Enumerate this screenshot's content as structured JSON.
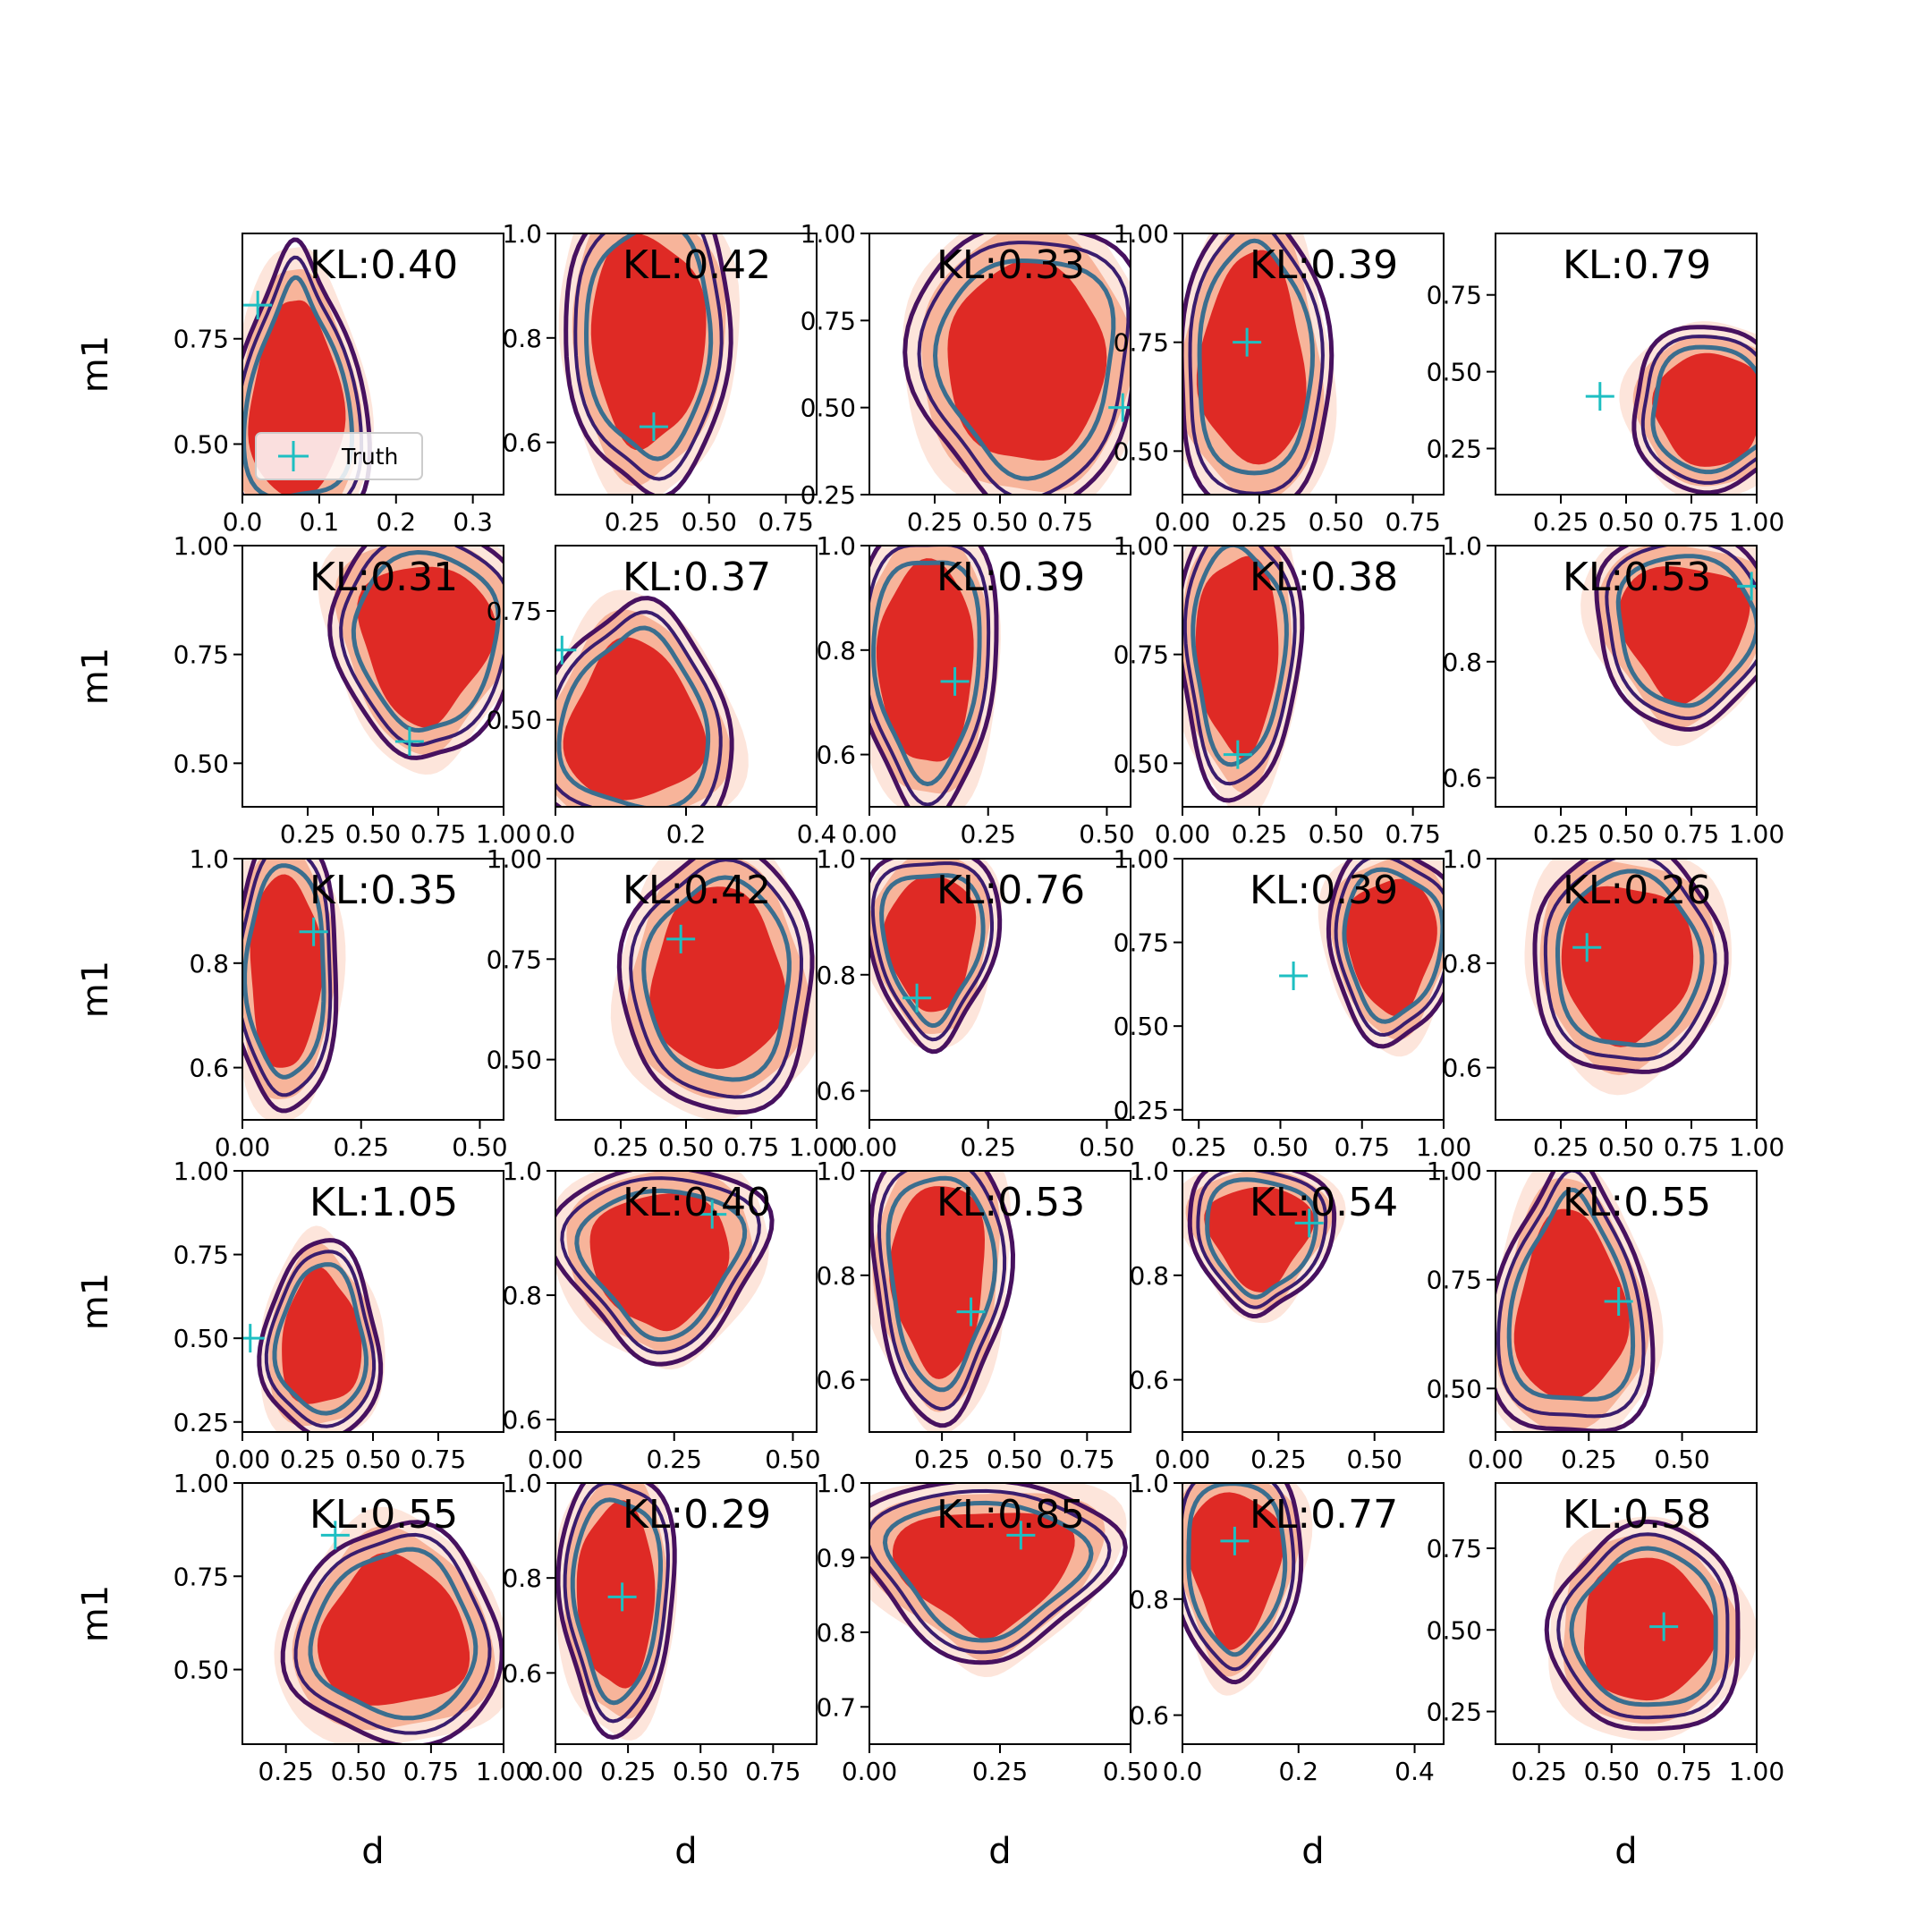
{
  "chart_data": {
    "type": "contour-grid",
    "rows": 5,
    "cols": 5,
    "xlabel": "d",
    "ylabel": "m1",
    "legend": {
      "label": "Truth",
      "placement": "lower-left"
    },
    "colors": {
      "fill_outer": "#fde5db",
      "fill_mid": "#f7b49a",
      "fill_inner": "#df2a25",
      "contour_outer": "#47115f",
      "contour_mid": "#3a1d6e",
      "contour_inner": "#3b6e8e",
      "truth_marker": "#1ebfc2"
    },
    "panels": [
      {
        "kl": "KL:0.40",
        "xlim": [
          0,
          0.34
        ],
        "ylim": [
          0.38,
          1.0
        ],
        "xticks": [
          0,
          0.1,
          0.2,
          0.3
        ],
        "xtick_labels": [
          "0.0",
          "0.1",
          "0.2",
          "0.3"
        ],
        "yticks": [
          0.5,
          0.75
        ],
        "ytick_labels": [
          "0.50",
          "0.75"
        ],
        "truth": [
          0.02,
          0.83
        ],
        "cx": 0.07,
        "cy": 0.62,
        "rx": 0.07,
        "ry": 0.28,
        "skew": -0.45
      },
      {
        "kl": "KL:0.42",
        "xlim": [
          0,
          0.85
        ],
        "ylim": [
          0.5,
          1.0
        ],
        "xticks": [
          0.25,
          0.5,
          0.75
        ],
        "xtick_labels": [
          "0.25",
          "0.50",
          "0.75"
        ],
        "yticks": [
          0.6,
          0.8,
          1.0
        ],
        "ytick_labels": [
          "0.6",
          "0.8",
          "1.0"
        ],
        "truth": [
          0.32,
          0.63
        ],
        "cx": 0.3,
        "cy": 0.79,
        "rx": 0.22,
        "ry": 0.24,
        "skew": 0.2
      },
      {
        "kl": "KL:0.33",
        "xlim": [
          0,
          1.0
        ],
        "ylim": [
          0.25,
          1.0
        ],
        "xticks": [
          0.25,
          0.5,
          0.75
        ],
        "xtick_labels": [
          "0.25",
          "0.50",
          "0.75"
        ],
        "yticks": [
          0.25,
          0.5,
          0.75,
          1.0
        ],
        "ytick_labels": [
          "0.25",
          "0.50",
          "0.75",
          "1.00"
        ],
        "truth": [
          0.97,
          0.5
        ],
        "cx": 0.6,
        "cy": 0.62,
        "rx": 0.36,
        "ry": 0.34,
        "skew": 0.15
      },
      {
        "kl": "KL:0.39",
        "xlim": [
          0,
          0.85
        ],
        "ylim": [
          0.4,
          1.0
        ],
        "xticks": [
          0,
          0.25,
          0.5,
          0.75
        ],
        "xtick_labels": [
          "0.00",
          "0.25",
          "0.50",
          "0.75"
        ],
        "yticks": [
          0.5,
          0.75,
          1.0
        ],
        "ytick_labels": [
          "0.50",
          "0.75",
          "1.00"
        ],
        "truth": [
          0.21,
          0.75
        ],
        "cx": 0.23,
        "cy": 0.72,
        "rx": 0.2,
        "ry": 0.29,
        "skew": -0.25
      },
      {
        "kl": "KL:0.79",
        "xlim": [
          0,
          1.0
        ],
        "ylim": [
          0.1,
          0.95
        ],
        "xticks": [
          0.25,
          0.5,
          0.75,
          1.0
        ],
        "xtick_labels": [
          "0.25",
          "0.50",
          "0.75",
          "1.00"
        ],
        "yticks": [
          0.25,
          0.5,
          0.75
        ],
        "ytick_labels": [
          "0.25",
          "0.50",
          "0.75"
        ],
        "truth": [
          0.4,
          0.42
        ],
        "cx": 0.82,
        "cy": 0.38,
        "rx": 0.25,
        "ry": 0.22,
        "skew": 0
      },
      {
        "kl": "KL:0.31",
        "xlim": [
          0,
          1.0
        ],
        "ylim": [
          0.4,
          1.0
        ],
        "xticks": [
          0.25,
          0.5,
          0.75,
          1.0
        ],
        "xtick_labels": [
          "0.25",
          "0.50",
          "0.75",
          "1.00"
        ],
        "yticks": [
          0.5,
          0.75,
          1.0
        ],
        "ytick_labels": [
          "0.50",
          "0.75",
          "1.00"
        ],
        "truth": [
          0.64,
          0.55
        ],
        "cx": 0.7,
        "cy": 0.77,
        "rx": 0.29,
        "ry": 0.22,
        "skew": 0.35
      },
      {
        "kl": "KL:0.37",
        "xlim": [
          0,
          0.4
        ],
        "ylim": [
          0.3,
          0.9
        ],
        "xticks": [
          0,
          0.2,
          0.4
        ],
        "xtick_labels": [
          "0.0",
          "0.2",
          "0.4"
        ],
        "yticks": [
          0.5,
          0.75
        ],
        "ytick_labels": [
          "0.50",
          "0.75"
        ],
        "truth": [
          0.01,
          0.66
        ],
        "cx": 0.12,
        "cy": 0.5,
        "rx": 0.12,
        "ry": 0.22,
        "skew": -0.3
      },
      {
        "kl": "KL:0.39",
        "xlim": [
          0,
          0.55
        ],
        "ylim": [
          0.5,
          1.0
        ],
        "xticks": [
          0,
          0.25,
          0.5
        ],
        "xtick_labels": [
          "0.00",
          "0.25",
          "0.50"
        ],
        "yticks": [
          0.6,
          0.8,
          1.0
        ],
        "ytick_labels": [
          "0.6",
          "0.8",
          "1.0"
        ],
        "truth": [
          0.18,
          0.74
        ],
        "cx": 0.12,
        "cy": 0.77,
        "rx": 0.12,
        "ry": 0.23,
        "skew": 0.15
      },
      {
        "kl": "KL:0.38",
        "xlim": [
          0,
          0.85
        ],
        "ylim": [
          0.4,
          1.0
        ],
        "xticks": [
          0,
          0.25,
          0.5,
          0.75
        ],
        "xtick_labels": [
          "0.00",
          "0.25",
          "0.50",
          "0.75"
        ],
        "yticks": [
          0.5,
          0.75,
          1.0
        ],
        "ytick_labels": [
          "0.50",
          "0.75",
          "1.00"
        ],
        "truth": [
          0.18,
          0.52
        ],
        "cx": 0.18,
        "cy": 0.75,
        "rx": 0.16,
        "ry": 0.27,
        "skew": 0.1
      },
      {
        "kl": "KL:0.53",
        "xlim": [
          0,
          1.0
        ],
        "ylim": [
          0.55,
          1.0
        ],
        "xticks": [
          0.25,
          0.5,
          0.75,
          1.0
        ],
        "xtick_labels": [
          "0.25",
          "0.50",
          "0.75",
          "1.00"
        ],
        "yticks": [
          0.6,
          0.8,
          1.0
        ],
        "ytick_labels": [
          "0.6",
          "0.8",
          "1.0"
        ],
        "truth": [
          0.98,
          0.93
        ],
        "cx": 0.72,
        "cy": 0.85,
        "rx": 0.28,
        "ry": 0.14,
        "skew": 0.3
      },
      {
        "kl": "KL:0.35",
        "xlim": [
          0,
          0.55
        ],
        "ylim": [
          0.5,
          1.0
        ],
        "xticks": [
          0,
          0.25,
          0.5
        ],
        "xtick_labels": [
          "0.00",
          "0.25",
          "0.50"
        ],
        "yticks": [
          0.6,
          0.8,
          1.0
        ],
        "ytick_labels": [
          "0.6",
          "0.8",
          "1.0"
        ],
        "truth": [
          0.15,
          0.86
        ],
        "cx": 0.09,
        "cy": 0.78,
        "rx": 0.09,
        "ry": 0.22,
        "skew": 0.1
      },
      {
        "kl": "KL:0.42",
        "xlim": [
          0,
          1.0
        ],
        "ylim": [
          0.35,
          1.0
        ],
        "xticks": [
          0.25,
          0.5,
          0.75,
          1.0
        ],
        "xtick_labels": [
          "0.25",
          "0.50",
          "0.75",
          "1.00"
        ],
        "yticks": [
          0.5,
          0.75,
          1.0
        ],
        "ytick_labels": [
          "0.50",
          "0.75",
          "1.00"
        ],
        "truth": [
          0.48,
          0.8
        ],
        "cx": 0.62,
        "cy": 0.7,
        "rx": 0.3,
        "ry": 0.27,
        "skew": -0.05
      },
      {
        "kl": "KL:0.76",
        "xlim": [
          0,
          0.55
        ],
        "ylim": [
          0.55,
          1.0
        ],
        "xticks": [
          0,
          0.25,
          0.5
        ],
        "xtick_labels": [
          "0.00",
          "0.25",
          "0.50"
        ],
        "yticks": [
          0.6,
          0.8,
          1.0
        ],
        "ytick_labels": [
          "0.6",
          "0.8",
          "1.0"
        ],
        "truth": [
          0.1,
          0.76
        ],
        "cx": 0.13,
        "cy": 0.85,
        "rx": 0.11,
        "ry": 0.14,
        "skew": 0.3
      },
      {
        "kl": "KL:0.39",
        "xlim": [
          0.2,
          1.0
        ],
        "ylim": [
          0.22,
          1.0
        ],
        "xticks": [
          0.25,
          0.5,
          0.75,
          1.0
        ],
        "xtick_labels": [
          "0.25",
          "0.50",
          "0.75",
          "1.00"
        ],
        "yticks": [
          0.25,
          0.5,
          0.75,
          1.0
        ],
        "ytick_labels": [
          "0.25",
          "0.50",
          "0.75",
          "1.00"
        ],
        "truth": [
          0.54,
          0.65
        ],
        "cx": 0.84,
        "cy": 0.74,
        "rx": 0.16,
        "ry": 0.24,
        "skew": 0.2
      },
      {
        "kl": "KL:0.26",
        "xlim": [
          0,
          1.0
        ],
        "ylim": [
          0.5,
          1.0
        ],
        "xticks": [
          0.25,
          0.5,
          0.75,
          1.0
        ],
        "xtick_labels": [
          "0.25",
          "0.50",
          "0.75",
          "1.00"
        ],
        "yticks": [
          0.6,
          0.8,
          1.0
        ],
        "ytick_labels": [
          "0.6",
          "0.8",
          "1.0"
        ],
        "truth": [
          0.35,
          0.83
        ],
        "cx": 0.5,
        "cy": 0.8,
        "rx": 0.3,
        "ry": 0.18,
        "skew": 0.1
      },
      {
        "kl": "KL:1.05",
        "xlim": [
          0,
          1.0
        ],
        "ylim": [
          0.22,
          1.0
        ],
        "xticks": [
          0,
          0.25,
          0.5,
          0.75
        ],
        "xtick_labels": [
          "0.00",
          "0.25",
          "0.50",
          "0.75"
        ],
        "yticks": [
          0.25,
          0.5,
          0.75,
          1.0
        ],
        "ytick_labels": [
          "0.25",
          "0.50",
          "0.75",
          "1.00"
        ],
        "truth": [
          0.03,
          0.5
        ],
        "cx": 0.3,
        "cy": 0.5,
        "rx": 0.18,
        "ry": 0.24,
        "skew": -0.2
      },
      {
        "kl": "KL:0.40",
        "xlim": [
          0,
          0.55
        ],
        "ylim": [
          0.58,
          1.0
        ],
        "xticks": [
          0,
          0.25,
          0.5
        ],
        "xtick_labels": [
          "0.00",
          "0.25",
          "0.50"
        ],
        "yticks": [
          0.6,
          0.8,
          1.0
        ],
        "ytick_labels": [
          "0.6",
          "0.8",
          "1.0"
        ],
        "truth": [
          0.33,
          0.93
        ],
        "cx": 0.22,
        "cy": 0.85,
        "rx": 0.17,
        "ry": 0.13,
        "skew": 0.4
      },
      {
        "kl": "KL:0.53",
        "xlim": [
          0,
          0.9
        ],
        "ylim": [
          0.5,
          1.0
        ],
        "xticks": [
          0.25,
          0.5,
          0.75
        ],
        "xtick_labels": [
          "0.25",
          "0.50",
          "0.75"
        ],
        "yticks": [
          0.6,
          0.8,
          1.0
        ],
        "ytick_labels": [
          "0.6",
          "0.8",
          "1.0"
        ],
        "truth": [
          0.35,
          0.73
        ],
        "cx": 0.24,
        "cy": 0.79,
        "rx": 0.19,
        "ry": 0.22,
        "skew": 0.2
      },
      {
        "kl": "KL:0.54",
        "xlim": [
          0,
          0.68
        ],
        "ylim": [
          0.5,
          1.0
        ],
        "xticks": [
          0,
          0.25,
          0.5
        ],
        "xtick_labels": [
          "0.00",
          "0.25",
          "0.50"
        ],
        "yticks": [
          0.6,
          0.8,
          1.0
        ],
        "ytick_labels": [
          "0.6",
          "0.8",
          "1.0"
        ],
        "truth": [
          0.33,
          0.9
        ],
        "cx": 0.2,
        "cy": 0.87,
        "rx": 0.15,
        "ry": 0.12,
        "skew": 0.4
      },
      {
        "kl": "KL:0.55",
        "xlim": [
          0,
          0.7
        ],
        "ylim": [
          0.4,
          1.0
        ],
        "xticks": [
          0,
          0.25,
          0.5
        ],
        "xtick_labels": [
          "0.00",
          "0.25",
          "0.50"
        ],
        "yticks": [
          0.5,
          0.75,
          1.0
        ],
        "ytick_labels": [
          "0.50",
          "0.75",
          "1.00"
        ],
        "truth": [
          0.33,
          0.7
        ],
        "cx": 0.2,
        "cy": 0.7,
        "rx": 0.17,
        "ry": 0.26,
        "skew": -0.35
      },
      {
        "kl": "KL:0.55",
        "xlim": [
          0.1,
          1.0
        ],
        "ylim": [
          0.3,
          1.0
        ],
        "xticks": [
          0.25,
          0.5,
          0.75,
          1.0
        ],
        "xtick_labels": [
          "0.25",
          "0.50",
          "0.75",
          "1.00"
        ],
        "yticks": [
          0.5,
          0.75,
          1.0
        ],
        "ytick_labels": [
          "0.50",
          "0.75",
          "1.00"
        ],
        "truth": [
          0.42,
          0.86
        ],
        "cx": 0.62,
        "cy": 0.6,
        "rx": 0.3,
        "ry": 0.24,
        "skew": -0.2
      },
      {
        "kl": "KL:0.29",
        "xlim": [
          0,
          0.9
        ],
        "ylim": [
          0.45,
          1.0
        ],
        "xticks": [
          0,
          0.25,
          0.5,
          0.75
        ],
        "xtick_labels": [
          "0.00",
          "0.25",
          "0.50",
          "0.75"
        ],
        "yticks": [
          0.6,
          0.8,
          1.0
        ],
        "ytick_labels": [
          "0.6",
          "0.8",
          "1.0"
        ],
        "truth": [
          0.23,
          0.76
        ],
        "cx": 0.21,
        "cy": 0.76,
        "rx": 0.16,
        "ry": 0.23,
        "skew": 0.1
      },
      {
        "kl": "KL:0.85",
        "xlim": [
          0,
          0.5
        ],
        "ylim": [
          0.65,
          1.0
        ],
        "xticks": [
          0,
          0.25,
          0.5
        ],
        "xtick_labels": [
          "0.00",
          "0.25",
          "0.50"
        ],
        "yticks": [
          0.7,
          0.8,
          0.9,
          1.0
        ],
        "ytick_labels": [
          "0.7",
          "0.8",
          "0.9",
          "1.0"
        ],
        "truth": [
          0.29,
          0.93
        ],
        "cx": 0.22,
        "cy": 0.88,
        "rx": 0.19,
        "ry": 0.1,
        "skew": 0.45
      },
      {
        "kl": "KL:0.77",
        "xlim": [
          0,
          0.45
        ],
        "ylim": [
          0.55,
          1.0
        ],
        "xticks": [
          0,
          0.2,
          0.4
        ],
        "xtick_labels": [
          "0.0",
          "0.2",
          "0.4"
        ],
        "yticks": [
          0.6,
          0.8,
          1.0
        ],
        "ytick_labels": [
          "0.6",
          "0.8",
          "1.0"
        ],
        "truth": [
          0.09,
          0.9
        ],
        "cx": 0.09,
        "cy": 0.85,
        "rx": 0.09,
        "ry": 0.16,
        "skew": 0.35
      },
      {
        "kl": "KL:0.58",
        "xlim": [
          0.1,
          1.0
        ],
        "ylim": [
          0.15,
          0.95
        ],
        "xticks": [
          0.25,
          0.5,
          0.75,
          1.0
        ],
        "xtick_labels": [
          "0.25",
          "0.50",
          "0.75",
          "1.00"
        ],
        "yticks": [
          0.25,
          0.5,
          0.75
        ],
        "ytick_labels": [
          "0.25",
          "0.50",
          "0.75"
        ],
        "truth": [
          0.68,
          0.51
        ],
        "cx": 0.62,
        "cy": 0.5,
        "rx": 0.27,
        "ry": 0.26,
        "skew": 0
      }
    ]
  }
}
